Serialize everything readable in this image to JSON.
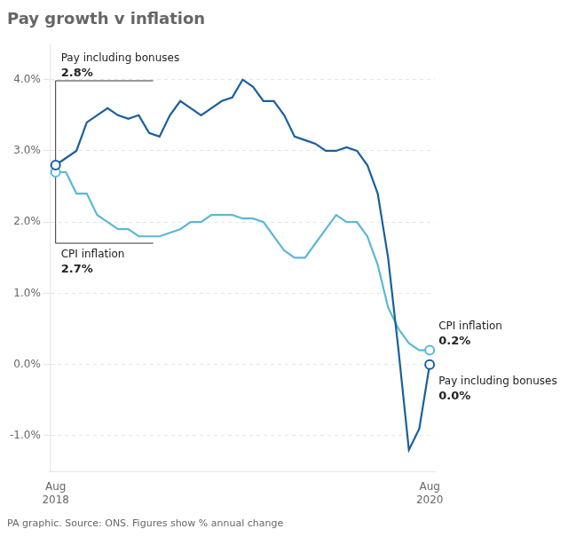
{
  "chart_data": {
    "type": "line",
    "title": "Pay growth v inflation",
    "subtitle": "PA graphic. Source: ONS. Figures show % annual change",
    "categories": [
      "Aug 2018",
      null,
      null,
      null,
      null,
      null,
      null,
      null,
      null,
      null,
      null,
      null,
      null,
      null,
      null,
      null,
      null,
      null,
      null,
      null,
      null,
      null,
      null,
      null,
      null,
      null,
      null,
      null,
      null,
      null,
      null,
      null,
      null,
      null,
      null,
      null,
      "Aug 2020"
    ],
    "series": [
      {
        "name": "CPI inflation",
        "color": "#5bb8d4",
        "values": [
          2.7,
          2.7,
          2.4,
          2.4,
          2.1,
          2.0,
          1.9,
          1.9,
          1.8,
          1.8,
          1.8,
          1.85,
          1.9,
          2.0,
          2.0,
          2.1,
          2.1,
          2.1,
          2.05,
          2.05,
          2.0,
          1.8,
          1.6,
          1.5,
          1.5,
          1.7,
          1.9,
          2.1,
          2.0,
          2.0,
          1.8,
          1.4,
          0.8,
          0.5,
          0.3,
          0.2,
          0.2
        ],
        "value_labels": [
          "2.7%",
          null,
          null,
          null,
          null,
          null,
          null,
          null,
          null,
          null,
          null,
          null,
          null,
          null,
          null,
          null,
          null,
          null,
          null,
          null,
          null,
          null,
          null,
          null,
          null,
          null,
          null,
          null,
          null,
          null,
          null,
          null,
          null,
          null,
          null,
          null,
          "0.2%"
        ]
      },
      {
        "name": "Pay including bonuses",
        "color": "#1a5f9e",
        "values": [
          2.8,
          2.9,
          3.0,
          3.4,
          3.5,
          3.6,
          3.5,
          3.45,
          3.5,
          3.25,
          3.2,
          3.5,
          3.7,
          3.6,
          3.5,
          3.6,
          3.7,
          3.75,
          4.0,
          3.9,
          3.7,
          3.7,
          3.5,
          3.2,
          3.15,
          3.1,
          3.0,
          3.0,
          3.05,
          3.0,
          2.8,
          2.4,
          1.5,
          0.2,
          -1.2,
          -0.9,
          0.0
        ],
        "value_labels": [
          "2.8%",
          null,
          null,
          null,
          null,
          null,
          null,
          null,
          null,
          null,
          null,
          null,
          null,
          null,
          null,
          null,
          null,
          null,
          null,
          null,
          null,
          null,
          null,
          null,
          null,
          null,
          null,
          null,
          null,
          null,
          null,
          null,
          null,
          null,
          null,
          null,
          "0.0%"
        ]
      }
    ],
    "ylim": [
      -1.5,
      4.5
    ],
    "yticks": [
      {
        "value": -1.0,
        "label": "-1.0%"
      },
      {
        "value": 0.0,
        "label": "0.0%"
      },
      {
        "value": 1.0,
        "label": "1.0%"
      },
      {
        "value": 2.0,
        "label": "2.0%"
      },
      {
        "value": 3.0,
        "label": "3.0%"
      },
      {
        "value": 4.0,
        "label": "4.0%"
      }
    ],
    "grid": true,
    "data_labels": true
  }
}
